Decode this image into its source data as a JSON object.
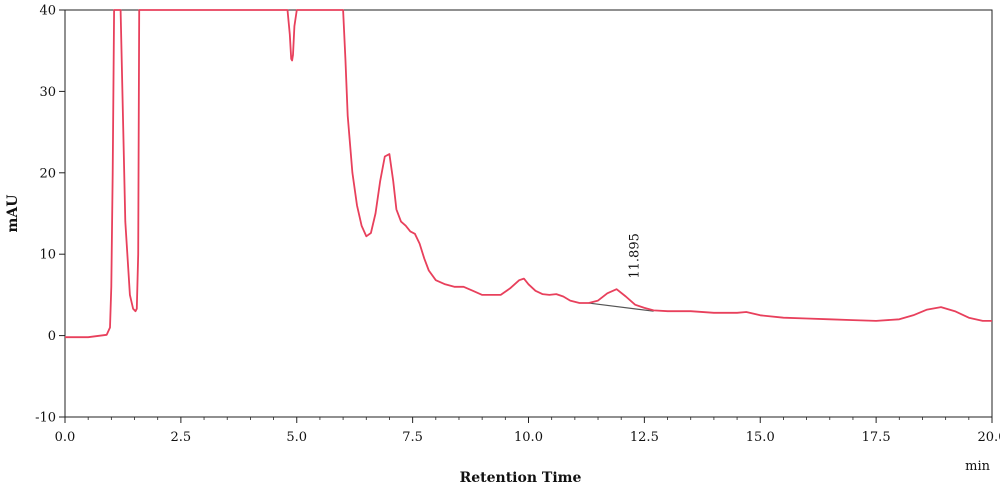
{
  "chart_data": {
    "type": "line",
    "ylabel": "mAU",
    "xlabel": "Retention Time",
    "x_unit": "min",
    "xlim": [
      0,
      20
    ],
    "ylim": [
      -10,
      40
    ],
    "x_ticks": [
      0,
      2.5,
      5,
      7.5,
      10,
      12.5,
      15,
      17.5,
      20
    ],
    "x_tick_labels": [
      "0.0",
      "2.5",
      "5.0",
      "7.5",
      "10.0",
      "12.5",
      "15.0",
      "17.5",
      "20.0"
    ],
    "y_ticks": [
      -10,
      0,
      10,
      20,
      30,
      40
    ],
    "y_tick_labels": [
      "-10",
      "0",
      "10",
      "20",
      "30",
      "40"
    ],
    "grid": false,
    "colors": {
      "trace": "#e8405c",
      "baseline": "#555555",
      "axis": "#222222"
    },
    "series": [
      {
        "x": [
          0,
          0.5,
          0.9,
          0.97,
          1.0,
          1.03,
          1.06,
          1.1,
          1.15,
          1.2,
          1.3,
          1.4,
          1.47,
          1.52,
          1.55,
          1.58,
          1.6,
          1.63,
          1.66,
          4.75,
          4.8,
          4.85,
          4.88,
          4.9,
          4.92,
          4.95,
          5.0,
          6.0,
          6.05,
          6.1,
          6.2,
          6.3,
          6.4,
          6.5,
          6.6,
          6.7,
          6.8,
          6.9,
          7.0,
          7.08,
          7.15,
          7.25,
          7.35,
          7.45,
          7.55,
          7.65,
          7.75,
          7.85,
          8.0,
          8.2,
          8.4,
          8.6,
          8.8,
          9.0,
          9.2,
          9.4,
          9.6,
          9.8,
          9.9,
          10.0,
          10.15,
          10.3,
          10.45,
          10.6,
          10.75,
          10.9,
          11.1,
          11.3,
          11.5,
          11.7,
          11.9,
          12.1,
          12.3,
          12.5,
          12.7,
          13.0,
          13.5,
          14.0,
          14.5,
          14.7,
          15.0,
          15.5,
          16.0,
          16.5,
          17.0,
          17.5,
          18.0,
          18.3,
          18.6,
          18.9,
          19.2,
          19.5,
          19.8,
          20.0
        ],
        "y": [
          -0.2,
          -0.2,
          0.1,
          1.0,
          6.0,
          20.0,
          40.0,
          40.0,
          40.0,
          40.0,
          14.0,
          5.0,
          3.3,
          3.0,
          3.3,
          10.0,
          40.0,
          40.0,
          40.0,
          40.0,
          40.0,
          37.0,
          34.0,
          33.8,
          34.5,
          38.0,
          40.0,
          40.0,
          34.0,
          27.0,
          20.0,
          16.0,
          13.5,
          12.2,
          12.6,
          15.0,
          19.0,
          22.0,
          22.3,
          19.0,
          15.5,
          14.0,
          13.5,
          12.8,
          12.5,
          11.3,
          9.5,
          8.0,
          6.8,
          6.3,
          6.0,
          6.0,
          5.5,
          5.0,
          5.0,
          5.0,
          5.8,
          6.8,
          7.0,
          6.3,
          5.5,
          5.1,
          5.0,
          5.1,
          4.8,
          4.3,
          4.0,
          4.0,
          4.3,
          5.2,
          5.7,
          4.8,
          3.8,
          3.4,
          3.1,
          3.0,
          3.0,
          2.8,
          2.8,
          2.9,
          2.5,
          2.2,
          2.1,
          2.0,
          1.9,
          1.8,
          2.0,
          2.5,
          3.2,
          3.5,
          3.0,
          2.2,
          1.8,
          1.8
        ]
      }
    ],
    "baseline_segment": {
      "x": [
        11.3,
        12.7
      ],
      "y": [
        4.0,
        3.0
      ]
    },
    "annotation": {
      "label": "11.895",
      "x": 11.895,
      "y": 7.0
    }
  }
}
